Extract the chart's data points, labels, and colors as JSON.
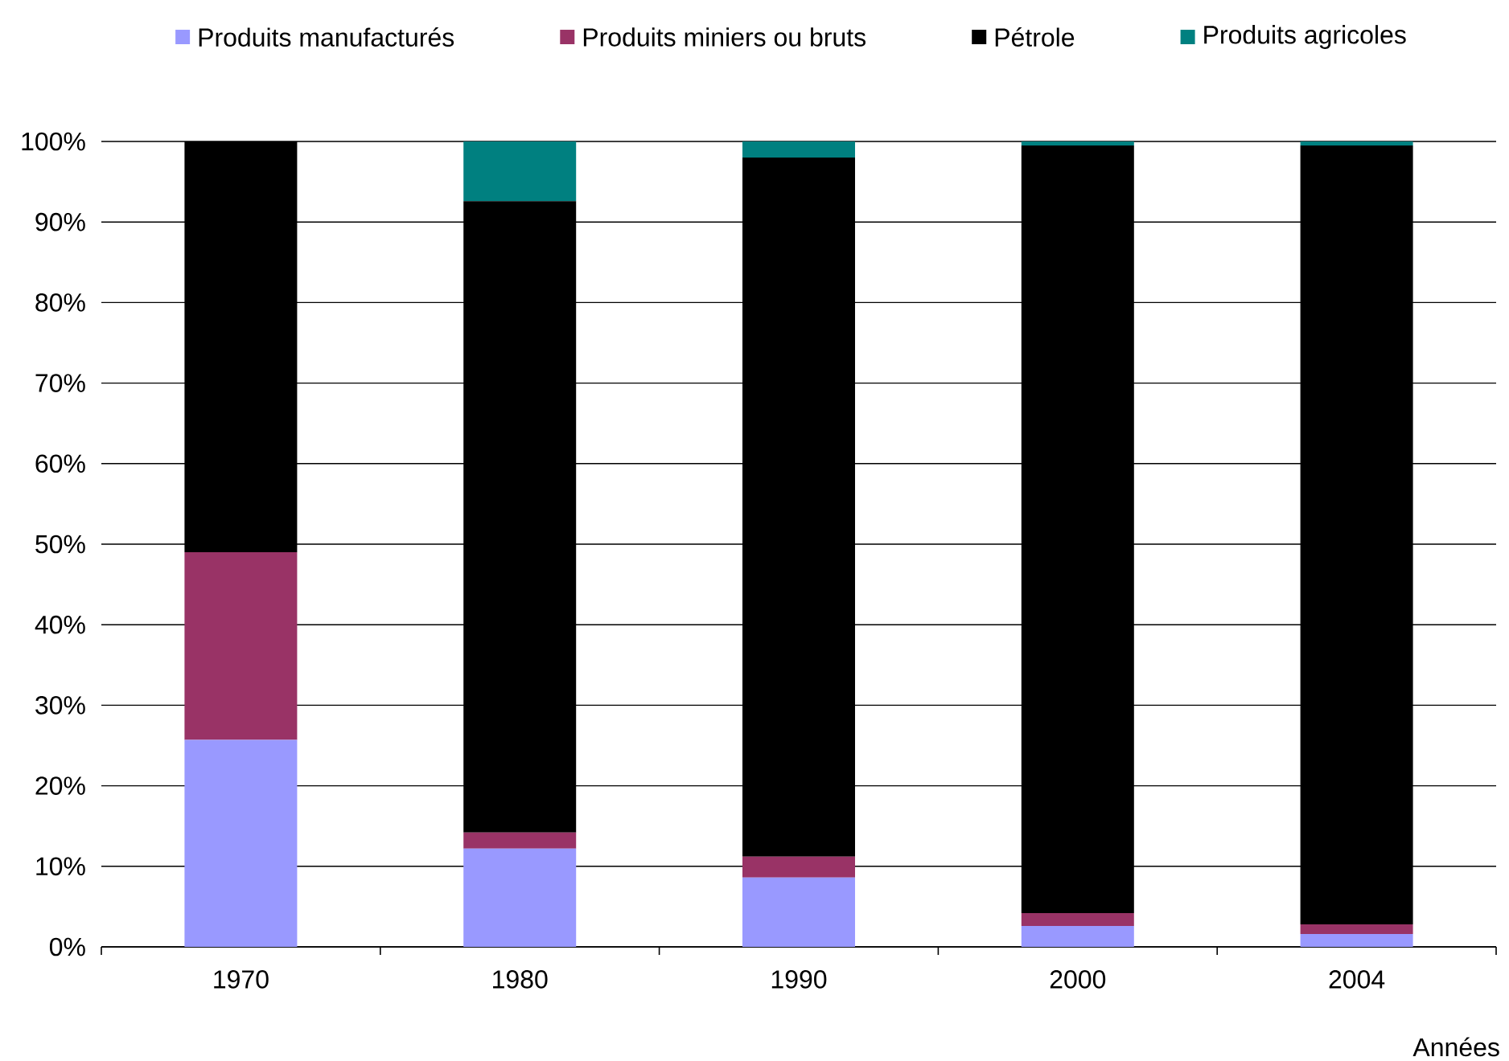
{
  "chart_data": {
    "type": "bar",
    "stacked": true,
    "categories": [
      "1970",
      "1980",
      "1990",
      "2000",
      "2004"
    ],
    "series": [
      {
        "name": "Produits manufacturés",
        "color": "#9999ff",
        "values": [
          25.7,
          12.2,
          8.6,
          2.6,
          1.6
        ]
      },
      {
        "name": "Produits miniers ou bruts",
        "color": "#993366",
        "values": [
          23.3,
          2.0,
          2.6,
          1.6,
          1.2
        ]
      },
      {
        "name": "Pétrole",
        "color": "#000000",
        "values": [
          51.0,
          78.4,
          86.8,
          95.3,
          96.7
        ]
      },
      {
        "name": "Produits agricoles",
        "color": "#008080",
        "values": [
          0,
          7.4,
          2.0,
          0.5,
          0.5
        ]
      }
    ],
    "ylim": [
      0,
      100
    ],
    "yticks": [
      {
        "value": 0,
        "label": "0%"
      },
      {
        "value": 10,
        "label": "10%"
      },
      {
        "value": 20,
        "label": "20%"
      },
      {
        "value": 30,
        "label": "30%"
      },
      {
        "value": 40,
        "label": "40%"
      },
      {
        "value": 50,
        "label": "50%"
      },
      {
        "value": 60,
        "label": "60%"
      },
      {
        "value": 70,
        "label": "70%"
      },
      {
        "value": 80,
        "label": "80%"
      },
      {
        "value": 90,
        "label": "90%"
      },
      {
        "value": 100,
        "label": "100%"
      }
    ],
    "xlabel": "Années",
    "grid": "y",
    "legend": "top"
  }
}
